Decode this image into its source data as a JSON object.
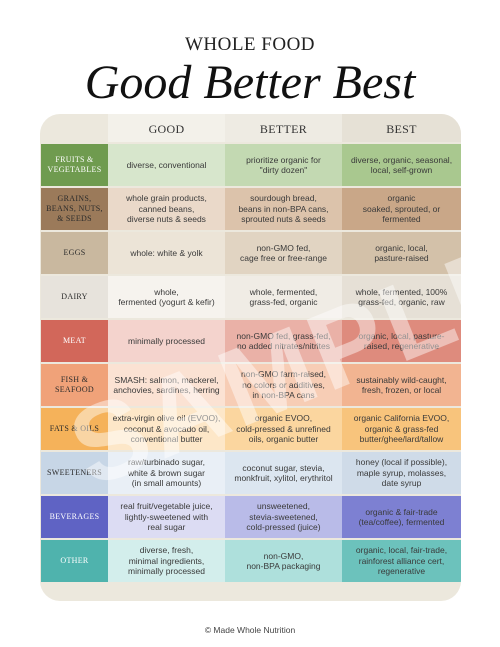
{
  "header": {
    "supertitle": "WHOLE FOOD",
    "title": "Good Better Best"
  },
  "columns": {
    "good": "GOOD",
    "better": "BETTER",
    "best": "BEST"
  },
  "colors": {
    "card_bg": "#ece8dd"
  },
  "rows": [
    {
      "label": "FRUITS &\nVEGETABLES",
      "light": true,
      "label_color": "#6f9b4f",
      "c1": "#d7e6cc",
      "c2": "#c3d9b2",
      "c3": "#a9c88f",
      "good": "diverse, conventional",
      "better": "prioritize organic for\n\"dirty dozen\"",
      "best": "diverse, organic, seasonal,\nlocal, self-grown"
    },
    {
      "label": "GRAINS,\nBEANS, NUTS,\n& SEEDS",
      "light": false,
      "label_color": "#9b7a5a",
      "c1": "#ead9c9",
      "c2": "#dcc3ab",
      "c3": "#c9a788",
      "good": "whole grain products,\ncanned beans,\ndiverse nuts & seeds",
      "better": "sourdough bread,\nbeans in non-BPA cans,\nsprouted nuts & seeds",
      "best": "organic\nsoaked, sprouted, or\nfermented"
    },
    {
      "label": "EGGS",
      "light": false,
      "label_color": "#c9b89f",
      "c1": "#ece4d7",
      "c2": "#e1d4c2",
      "c3": "#d3c1a9",
      "good": "whole: white & yolk",
      "better": "non-GMO fed,\ncage free or free-range",
      "best": "organic, local,\npasture-raised"
    },
    {
      "label": "DAIRY",
      "light": false,
      "label_color": "#e7e3dc",
      "c1": "#f6f3ee",
      "c2": "#f0ece5",
      "c3": "#e6e0d6",
      "good": "whole,\nfermented (yogurt & kefir)",
      "better": "whole, fermented,\ngrass-fed, organic",
      "best": "whole, fermented, 100%\ngrass-fed, organic, raw"
    },
    {
      "label": "MEAT",
      "light": true,
      "label_color": "#d2675a",
      "c1": "#f4d3cd",
      "c2": "#eab1a7",
      "c3": "#de8b7d",
      "good": "minimally processed",
      "better": "non-GMO fed, grass-fed,\nno added nitrates/nitrites",
      "best": "organic, local, pasture-\nraised, regenerative"
    },
    {
      "label": "FISH &\nSEAFOOD",
      "light": false,
      "label_color": "#f0a279",
      "c1": "#fbe2d3",
      "c2": "#f7cdb5",
      "c3": "#f2b491",
      "good": "SMASH: salmon, mackerel,\nanchovies, sardines, herring",
      "better": "non-GMO farm-raised,\nno colors or additives,\nin non-BPA cans",
      "best": "sustainably wild-caught,\nfresh, frozen, or local"
    },
    {
      "label": "FATS & OILS",
      "light": false,
      "label_color": "#f5b25a",
      "c1": "#fde7c8",
      "c2": "#fbd69f",
      "c3": "#f8c47c",
      "good": "extra-virgin olive oil (EVOO),\ncoconut & avocado oil,\nconventional butter",
      "better": "organic EVOO,\ncold-pressed & unrefined\noils, organic butter",
      "best": "organic California EVOO,\norganic & grass-fed\nbutter/ghee/lard/tallow"
    },
    {
      "label": "SWEETENERS",
      "light": false,
      "label_color": "#c7d6e6",
      "c1": "#e9eff6",
      "c2": "#dce6f0",
      "c3": "#cfdbe8",
      "good": "raw/turbinado sugar,\nwhite & brown sugar\n(in small amounts)",
      "better": "coconut sugar, stevia,\nmonkfruit, xylitol, erythritol",
      "best": "honey (local if possible),\nmaple syrup, molasses,\ndate syrup"
    },
    {
      "label": "BEVERAGES",
      "light": true,
      "label_color": "#5f63c4",
      "c1": "#dcdcf3",
      "c2": "#b9bbe8",
      "c3": "#7d80d2",
      "good": "real fruit/vegetable juice,\nlightly-sweetened with\nreal sugar",
      "better": "unsweetened,\nstevia-sweetened,\ncold-pressed (juice)",
      "best": "organic & fair-trade\n(tea/coffee), fermented"
    },
    {
      "label": "OTHER",
      "light": true,
      "label_color": "#4fb3ad",
      "c1": "#d3eeec",
      "c2": "#aee0dc",
      "c3": "#6cc2bc",
      "good": "diverse, fresh,\nminimal ingredients,\nminimally processed",
      "better": "non-GMO,\nnon-BPA packaging",
      "best": "organic, local, fair-trade,\nrainforest alliance cert,\nregenerative"
    }
  ],
  "watermark": "SAMPLE",
  "footer": "© Made Whole Nutrition"
}
